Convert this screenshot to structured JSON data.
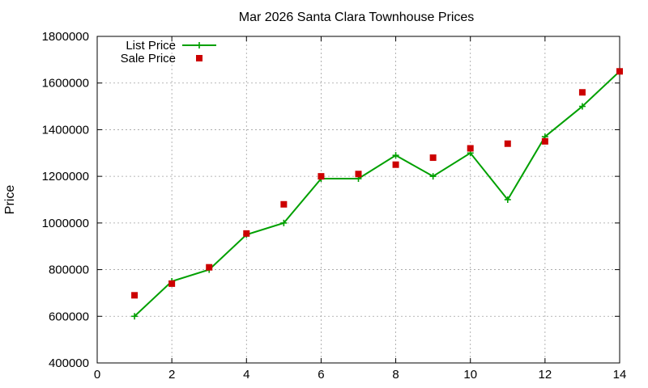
{
  "chart_data": {
    "type": "line",
    "title": "Mar 2026 Santa Clara Townhouse Prices",
    "xlabel": "",
    "ylabel": "Price",
    "xlim": [
      0,
      14
    ],
    "ylim": [
      400000,
      1800000
    ],
    "x_ticks": [
      0,
      2,
      4,
      6,
      8,
      10,
      12,
      14
    ],
    "y_ticks": [
      400000,
      600000,
      800000,
      1000000,
      1200000,
      1400000,
      1600000,
      1800000
    ],
    "grid": true,
    "legend_position": "top-left",
    "series": [
      {
        "name": "List Price",
        "style": "line-with-plus-markers",
        "color": "#00a000",
        "x": [
          1,
          2,
          3,
          4,
          5,
          6,
          7,
          8,
          9,
          10,
          11,
          12,
          13,
          14
        ],
        "y": [
          600000,
          750000,
          800000,
          950000,
          1000000,
          1190000,
          1190000,
          1290000,
          1200000,
          1300000,
          1100000,
          1370000,
          1500000,
          1650000
        ]
      },
      {
        "name": "Sale Price",
        "style": "square-markers",
        "color": "#cc0000",
        "x": [
          1,
          2,
          3,
          4,
          5,
          6,
          7,
          8,
          9,
          10,
          11,
          12,
          13,
          14
        ],
        "y": [
          690000,
          740000,
          810000,
          955000,
          1080000,
          1200000,
          1210000,
          1250000,
          1280000,
          1320000,
          1340000,
          1350000,
          1560000,
          1650000
        ]
      }
    ]
  }
}
